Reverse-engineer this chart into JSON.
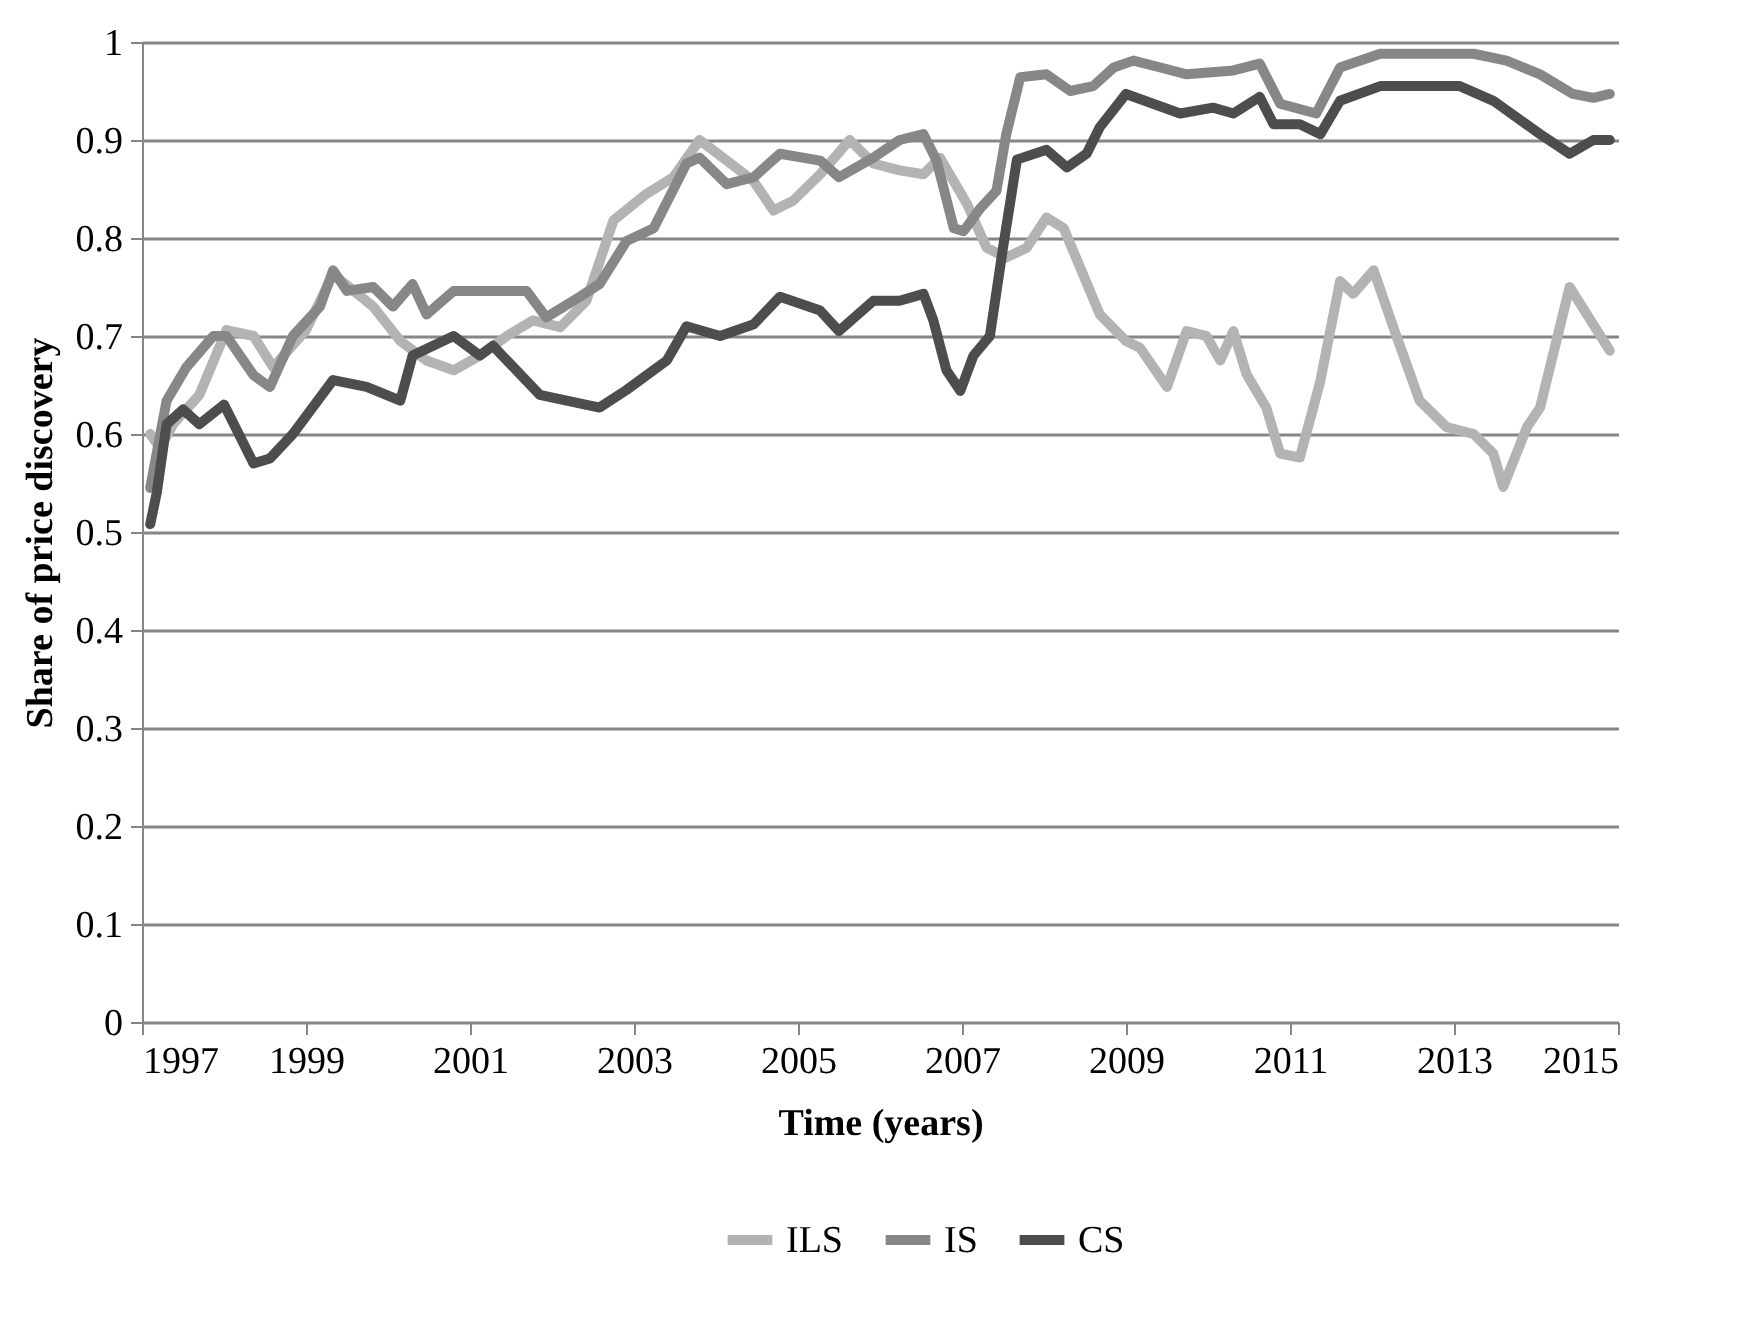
{
  "chart_data": {
    "type": "line",
    "xlabel": "Time (years)",
    "ylabel": "Share of price discovery",
    "xlim": [
      1997,
      2015
    ],
    "xticks": [
      1997,
      1999,
      2001,
      2003,
      2005,
      2007,
      2009,
      2011,
      2013,
      2015
    ],
    "ylim": [
      0,
      1
    ],
    "yticks": [
      0,
      0.1,
      0.2,
      0.3,
      0.4,
      0.5,
      0.6,
      0.7,
      0.8,
      0.9,
      1
    ],
    "grid": "y",
    "legend": "bottom",
    "marker": "none",
    "line_style": "solid",
    "series": [
      {
        "name": "ILS",
        "color": "#b3b3b3",
        "x": [
          1997.1,
          1997.22,
          1997.38,
          1997.7,
          1998.03,
          1998.36,
          1998.6,
          1999.0,
          1999.33,
          1999.82,
          2000.15,
          2000.47,
          2000.8,
          2001.12,
          2001.45,
          2001.77,
          2002.1,
          2002.42,
          2002.75,
          2003.15,
          2003.48,
          2003.8,
          2004.13,
          2004.46,
          2004.7,
          2004.94,
          2005.27,
          2005.63,
          2005.92,
          2006.24,
          2006.53,
          2006.73,
          2007.06,
          2007.3,
          2007.54,
          2007.79,
          2008.03,
          2008.24,
          2008.44,
          2008.68,
          2009.0,
          2009.17,
          2009.5,
          2009.74,
          2009.98,
          2010.15,
          2010.31,
          2010.47,
          2010.71,
          2010.88,
          2011.12,
          2011.37,
          2011.61,
          2011.77,
          2012.02,
          2012.26,
          2012.58,
          2012.91,
          2013.24,
          2013.48,
          2013.6,
          2013.89,
          2014.05,
          2014.41,
          2014.62,
          2014.9
        ],
        "values": [
          0.6,
          0.586,
          0.61,
          0.64,
          0.706,
          0.7,
          0.668,
          0.706,
          0.763,
          0.73,
          0.695,
          0.675,
          0.665,
          0.68,
          0.7,
          0.716,
          0.709,
          0.736,
          0.818,
          0.845,
          0.862,
          0.9,
          0.879,
          0.858,
          0.828,
          0.838,
          0.865,
          0.9,
          0.876,
          0.869,
          0.865,
          0.882,
          0.835,
          0.79,
          0.78,
          0.79,
          0.821,
          0.81,
          0.77,
          0.722,
          0.695,
          0.688,
          0.648,
          0.705,
          0.7,
          0.675,
          0.705,
          0.661,
          0.627,
          0.58,
          0.576,
          0.654,
          0.756,
          0.743,
          0.767,
          0.709,
          0.634,
          0.607,
          0.6,
          0.58,
          0.546,
          0.607,
          0.627,
          0.75,
          0.722,
          0.685
        ]
      },
      {
        "name": "IS",
        "color": "#878787",
        "x": [
          1997.1,
          1997.3,
          1997.54,
          1997.87,
          1998.03,
          1998.36,
          1998.56,
          1998.84,
          1999.17,
          1999.33,
          1999.5,
          1999.82,
          2000.06,
          2000.3,
          2000.47,
          2000.8,
          2001.28,
          2001.69,
          2001.93,
          2002.34,
          2002.58,
          2002.91,
          2003.24,
          2003.64,
          2003.8,
          2004.13,
          2004.46,
          2004.78,
          2005.27,
          2005.5,
          2005.92,
          2006.24,
          2006.53,
          2006.69,
          2006.9,
          2007.02,
          2007.22,
          2007.42,
          2007.54,
          2007.71,
          2008.03,
          2008.32,
          2008.6,
          2008.85,
          2009.09,
          2009.42,
          2009.74,
          2010.31,
          2010.63,
          2010.88,
          2011.32,
          2011.61,
          2012.1,
          2013.24,
          2013.64,
          2014.05,
          2014.45,
          2014.7,
          2014.9
        ],
        "values": [
          0.545,
          0.634,
          0.668,
          0.7,
          0.7,
          0.66,
          0.648,
          0.7,
          0.73,
          0.767,
          0.746,
          0.75,
          0.73,
          0.753,
          0.722,
          0.746,
          0.746,
          0.746,
          0.719,
          0.74,
          0.753,
          0.797,
          0.81,
          0.876,
          0.882,
          0.855,
          0.862,
          0.886,
          0.879,
          0.862,
          0.882,
          0.9,
          0.906,
          0.879,
          0.81,
          0.807,
          0.83,
          0.848,
          0.906,
          0.964,
          0.967,
          0.95,
          0.955,
          0.974,
          0.981,
          0.974,
          0.967,
          0.971,
          0.978,
          0.937,
          0.927,
          0.974,
          0.988,
          0.988,
          0.981,
          0.967,
          0.947,
          0.943,
          0.947
        ]
      },
      {
        "name": "CS",
        "color": "#4d4d4d",
        "x": [
          1997.1,
          1997.18,
          1997.3,
          1997.5,
          1997.7,
          1998.0,
          1998.36,
          1998.56,
          1998.84,
          1999.33,
          1999.74,
          2000.15,
          2000.3,
          2000.8,
          2001.12,
          2001.28,
          2001.85,
          2002.58,
          2002.91,
          2003.4,
          2003.64,
          2004.05,
          2004.46,
          2004.78,
          2005.27,
          2005.5,
          2005.92,
          2006.24,
          2006.53,
          2006.65,
          2006.81,
          2006.98,
          2007.14,
          2007.34,
          2007.5,
          2007.67,
          2008.03,
          2008.28,
          2008.52,
          2008.68,
          2009.0,
          2009.33,
          2009.66,
          2010.06,
          2010.31,
          2010.63,
          2010.8,
          2011.12,
          2011.37,
          2011.61,
          2012.1,
          2013.07,
          2013.48,
          2014.05,
          2014.41,
          2014.7,
          2014.9
        ],
        "values": [
          0.508,
          0.54,
          0.61,
          0.625,
          0.61,
          0.63,
          0.57,
          0.575,
          0.6,
          0.655,
          0.648,
          0.634,
          0.68,
          0.7,
          0.68,
          0.69,
          0.64,
          0.627,
          0.645,
          0.675,
          0.71,
          0.7,
          0.712,
          0.74,
          0.726,
          0.705,
          0.736,
          0.736,
          0.743,
          0.716,
          0.665,
          0.644,
          0.68,
          0.7,
          0.79,
          0.88,
          0.89,
          0.872,
          0.886,
          0.913,
          0.947,
          0.937,
          0.927,
          0.933,
          0.927,
          0.944,
          0.916,
          0.916,
          0.906,
          0.94,
          0.955,
          0.955,
          0.94,
          0.906,
          0.886,
          0.9,
          0.9
        ]
      }
    ]
  }
}
